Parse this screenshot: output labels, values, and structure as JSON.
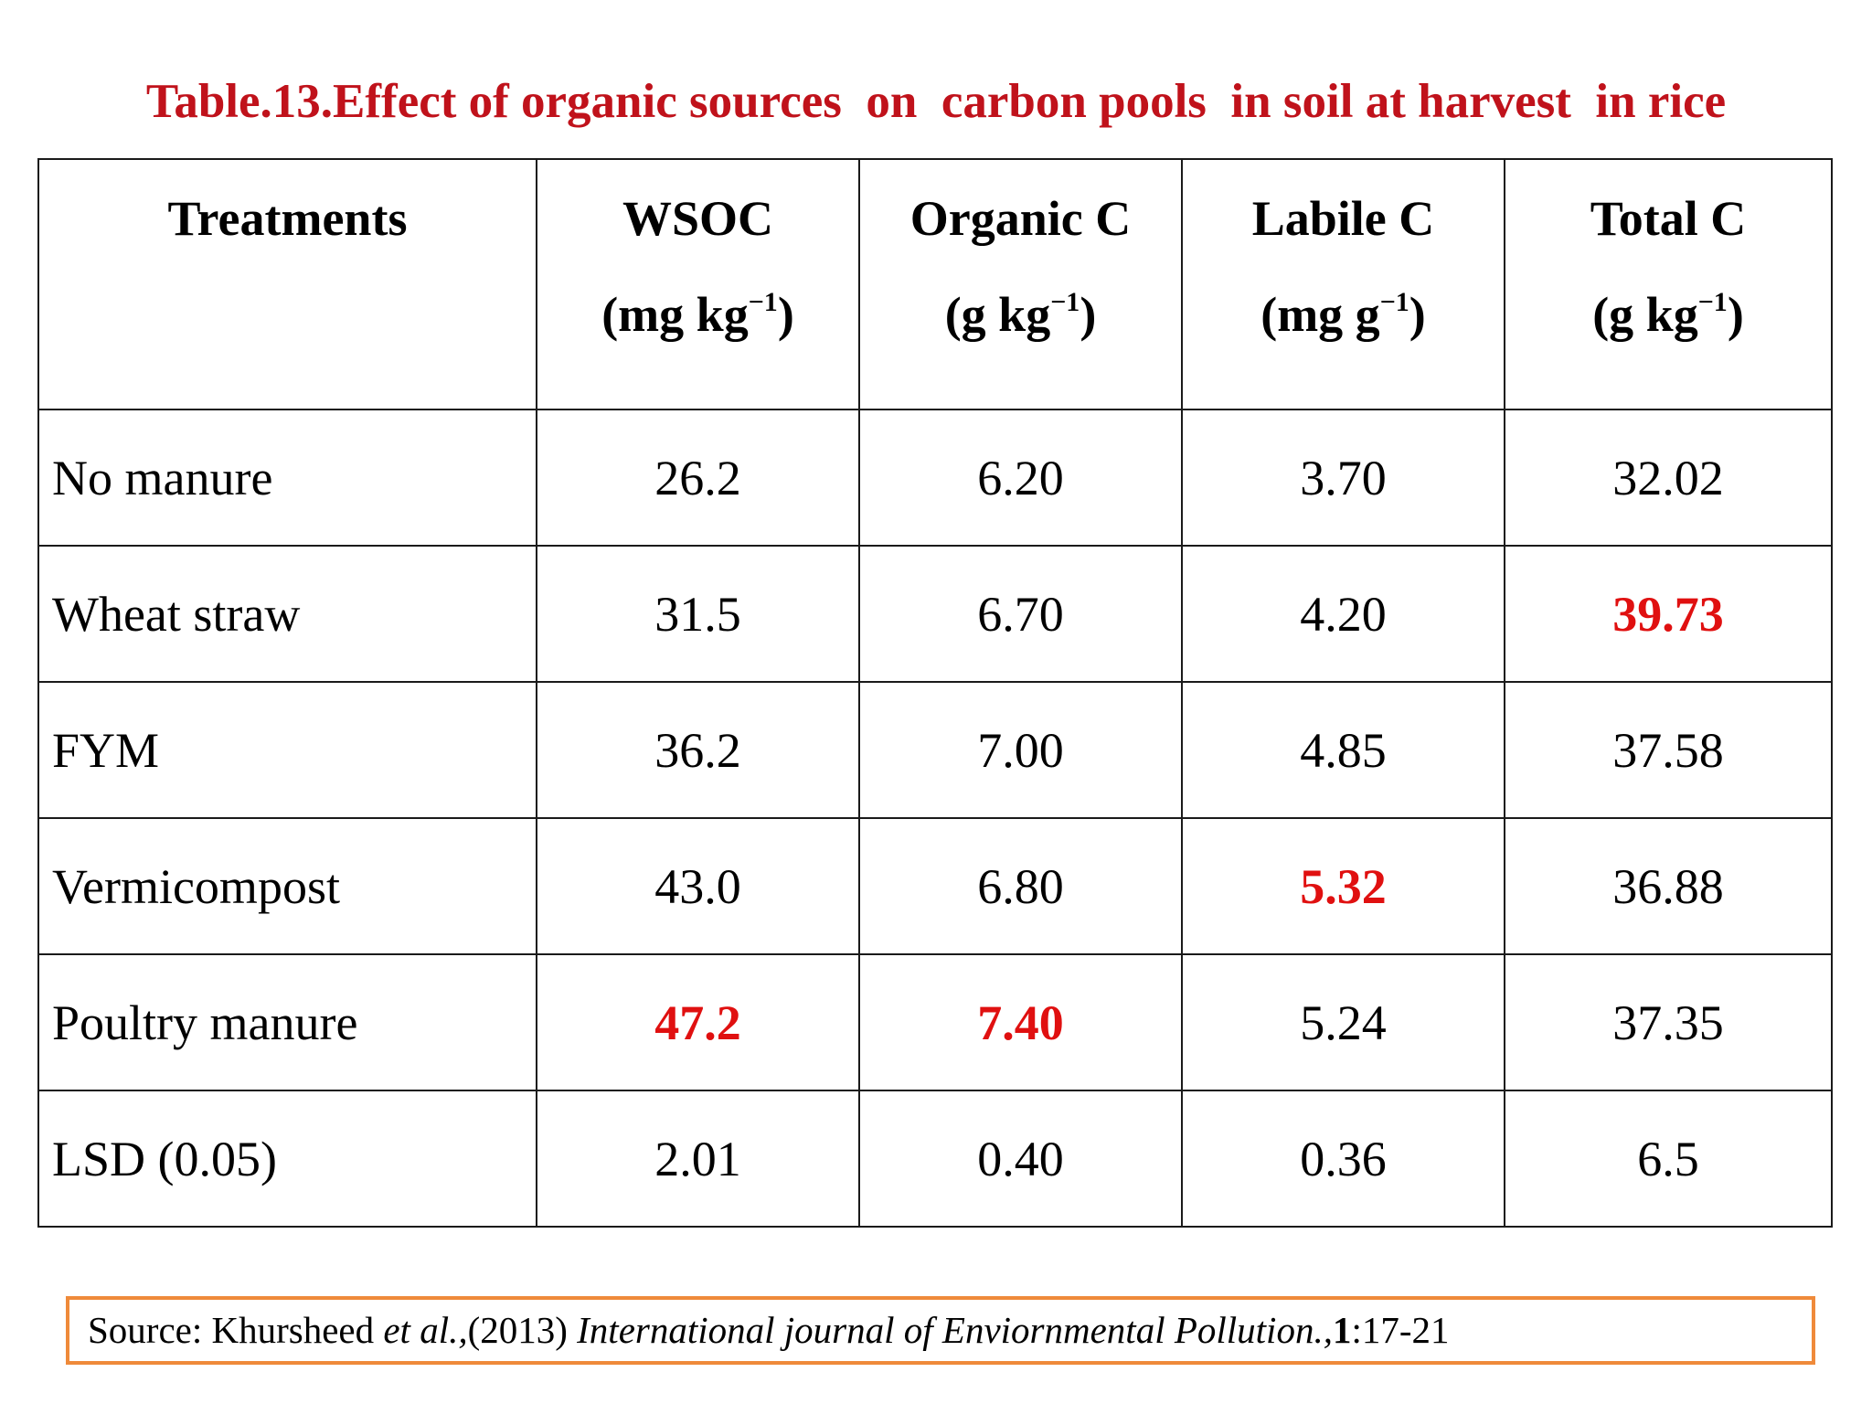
{
  "title": "Table.13.Effect of organic sources  on  carbon pools  in soil at harvest  in rice",
  "table": {
    "headers": [
      {
        "name": "Treatments",
        "unit": "",
        "unit_sup": ""
      },
      {
        "name": "WSOC",
        "unit_pre": "(mg kg",
        "unit_sup": "−1",
        "unit_post": ")"
      },
      {
        "name": "Organic C",
        "unit_pre": "(g kg",
        "unit_sup": "−1",
        "unit_post": ")"
      },
      {
        "name": "Labile C",
        "unit_pre": "(mg g",
        "unit_sup": "−1",
        "unit_post": ")"
      },
      {
        "name": "Total C",
        "unit_pre": "(g kg",
        "unit_sup": "−1",
        "unit_post": ")"
      }
    ],
    "rows": [
      {
        "treatment": "No manure",
        "values": [
          "26.2",
          "6.20",
          "3.70",
          "32.02"
        ],
        "highlight": [
          false,
          false,
          false,
          false
        ]
      },
      {
        "treatment": "Wheat straw",
        "values": [
          "31.5",
          "6.70",
          "4.20",
          "39.73"
        ],
        "highlight": [
          false,
          false,
          false,
          true
        ]
      },
      {
        "treatment": "FYM",
        "values": [
          "36.2",
          "7.00",
          "4.85",
          "37.58"
        ],
        "highlight": [
          false,
          false,
          false,
          false
        ]
      },
      {
        "treatment": "Vermicompost",
        "values": [
          "43.0",
          "6.80",
          "5.32",
          "36.88"
        ],
        "highlight": [
          false,
          false,
          true,
          false
        ]
      },
      {
        "treatment": "Poultry manure",
        "values": [
          "47.2",
          "7.40",
          "5.24",
          "37.35"
        ],
        "highlight": [
          true,
          true,
          false,
          false
        ]
      },
      {
        "treatment": "LSD (0.05)",
        "values": [
          "2.01",
          "0.40",
          "0.36",
          "6.5"
        ],
        "highlight": [
          false,
          false,
          false,
          false
        ]
      }
    ]
  },
  "source": {
    "prefix": "Source: Khursheed ",
    "etal": "et al.,",
    "year": "(2013) ",
    "journal": "International journal of Enviornmental Pollution.,",
    "volume": "1",
    "pages": ":17-21"
  },
  "colors": {
    "title": "#c0121b",
    "highlight": "#e01010",
    "source_border": "#ef8a3a"
  }
}
